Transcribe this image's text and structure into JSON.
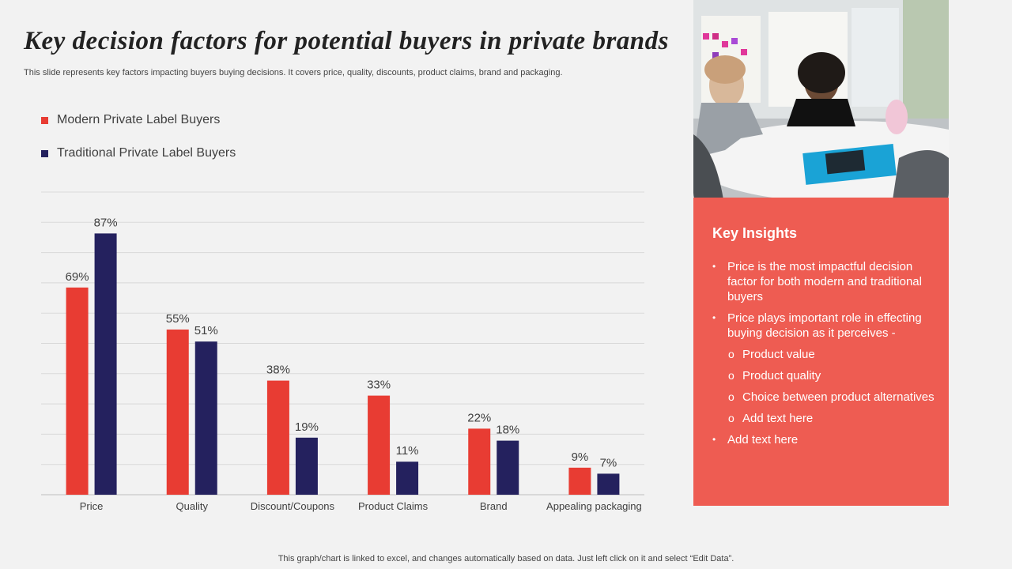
{
  "title": "Key decision factors for potential buyers in private brands",
  "subtitle": "This slide represents key factors impacting buyers buying decisions. It covers price, quality, discounts, product claims, brand and packaging.",
  "legend": [
    {
      "label": "Modern Private Label Buyers",
      "color": "#e83c33"
    },
    {
      "label": "Traditional Private Label Buyers",
      "color": "#24215e"
    }
  ],
  "chart_data": {
    "type": "bar",
    "categories": [
      "Price",
      "Quality",
      "Discount/Coupons",
      "Product Claims",
      "Brand",
      "Appealing packaging"
    ],
    "series": [
      {
        "name": "Modern Private Label Buyers",
        "values": [
          69,
          55,
          38,
          33,
          22,
          9
        ],
        "color": "#e83c33"
      },
      {
        "name": "Traditional Private Label Buyers",
        "values": [
          87,
          51,
          19,
          11,
          18,
          7
        ],
        "color": "#24215e"
      }
    ],
    "value_suffix": "%",
    "ylim": [
      0,
      100
    ],
    "grid": true,
    "legend_position": "top-left"
  },
  "insights": {
    "title": "Key Insights",
    "items": [
      {
        "level": 1,
        "text": "Price is the most impactful decision factor for both modern and traditional buyers"
      },
      {
        "level": 1,
        "text": "Price plays important role in effecting buying decision as it perceives -"
      },
      {
        "level": 2,
        "text": "Product value"
      },
      {
        "level": 2,
        "text": "Product quality"
      },
      {
        "level": 2,
        "text": "Choice between product alternatives"
      },
      {
        "level": 2,
        "text": "Add text here"
      },
      {
        "level": 1,
        "text": "Add text here"
      }
    ],
    "color": "#ee5c52"
  },
  "footer": "This graph/chart is linked to excel,  and changes automatically based on data. Just left click on it and select “Edit Data”."
}
